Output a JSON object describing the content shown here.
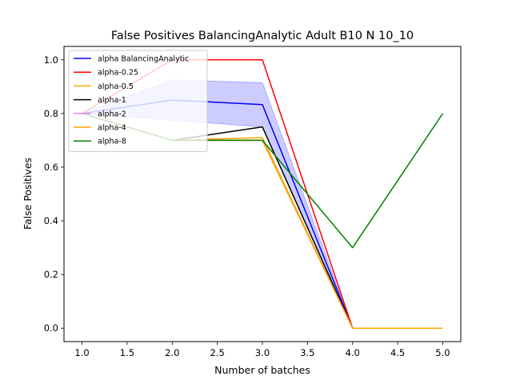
{
  "chart_data": {
    "type": "line",
    "title": "False Positives BalancingAnalytic Adult B10 N 10_10",
    "xlabel": "Number of batches",
    "ylabel": "False Positives",
    "xlim": [
      0.8,
      5.2
    ],
    "ylim": [
      -0.05,
      1.05
    ],
    "xticks": [
      1.0,
      1.5,
      2.0,
      2.5,
      3.0,
      3.5,
      4.0,
      4.5,
      5.0
    ],
    "xtick_labels": [
      "1.0",
      "1.5",
      "2.0",
      "2.5",
      "3.0",
      "3.5",
      "4.0",
      "4.5",
      "5.0"
    ],
    "yticks": [
      0.0,
      0.2,
      0.4,
      0.6,
      0.8,
      1.0
    ],
    "ytick_labels": [
      "0.0",
      "0.2",
      "0.4",
      "0.6",
      "0.8",
      "1.0"
    ],
    "grid": false,
    "legend_position": "upper-left",
    "x": [
      1,
      2,
      3,
      4,
      5
    ],
    "band": {
      "series": "alpha BalancingAnalytic",
      "color": "#0000ff",
      "x": [
        1,
        2,
        3,
        4,
        5
      ],
      "upper": [
        0.8,
        0.925,
        0.915,
        0.0,
        0.0
      ],
      "lower": [
        0.8,
        0.775,
        0.75,
        0.0,
        0.0
      ]
    },
    "series": [
      {
        "name": "alpha BalancingAnalytic",
        "color": "#0000ff",
        "values": [
          0.8,
          0.85,
          0.833,
          0.0,
          0.0
        ]
      },
      {
        "name": "alpha-0.25",
        "color": "#ff0000",
        "values": [
          0.8,
          1.0,
          1.0,
          0.0,
          0.0
        ]
      },
      {
        "name": "alpha-0.5",
        "color": "#ffa500",
        "values": [
          0.8,
          0.7,
          0.71,
          0.0,
          0.0
        ]
      },
      {
        "name": "alpha-1",
        "color": "#000000",
        "values": [
          0.8,
          0.7,
          0.75,
          0.0,
          0.0
        ]
      },
      {
        "name": "alpha-2",
        "color": "#ee82ee",
        "values": [
          0.8,
          0.7,
          0.7,
          0.0,
          0.0
        ]
      },
      {
        "name": "alpha-4",
        "color": "#ffa500",
        "values": [
          0.8,
          0.7,
          0.7,
          0.0,
          0.0
        ]
      },
      {
        "name": "alpha-8",
        "color": "#008000",
        "values": [
          0.8,
          0.7,
          0.7,
          0.3,
          0.8
        ]
      }
    ]
  }
}
